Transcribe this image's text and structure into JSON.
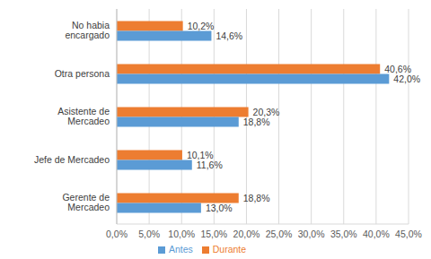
{
  "chart_data": {
    "type": "bar",
    "orientation": "horizontal",
    "categories": [
      "No habia encargado",
      "Otra persona",
      "Asistente de Mercadeo",
      "Jefe de Mercadeo",
      "Gerente de Mercadeo"
    ],
    "series": [
      {
        "name": "Durante",
        "color": "#ED7D31",
        "values": [
          10.2,
          40.6,
          20.3,
          10.1,
          18.8
        ],
        "value_labels": [
          "10,2%",
          "40,6%",
          "20,3%",
          "10,1%",
          "18,8%"
        ]
      },
      {
        "name": "Antes",
        "color": "#5B9BD5",
        "values": [
          14.6,
          42.0,
          18.8,
          11.6,
          13.0
        ],
        "value_labels": [
          "14,6%",
          "42,0%",
          "18,8%",
          "11,6%",
          "13,0%"
        ]
      }
    ],
    "xlim": [
      0,
      45
    ],
    "xticks": [
      {
        "value": 0,
        "label": "0,0%"
      },
      {
        "value": 5,
        "label": "5,0%"
      },
      {
        "value": 10,
        "label": "10,0%"
      },
      {
        "value": 15,
        "label": "15,0%"
      },
      {
        "value": 20,
        "label": "20,0%"
      },
      {
        "value": 25,
        "label": "25,0%"
      },
      {
        "value": 30,
        "label": "30,0%"
      },
      {
        "value": 35,
        "label": "35,0%"
      },
      {
        "value": 40,
        "label": "40,0%"
      },
      {
        "value": 45,
        "label": "45,0%"
      }
    ],
    "grid": true,
    "data_labels": true,
    "legend": "bottom"
  }
}
